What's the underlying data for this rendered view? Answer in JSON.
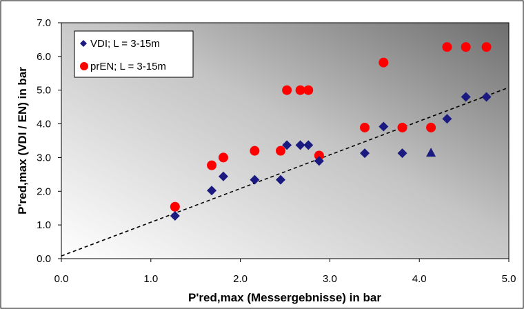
{
  "chart_data": {
    "type": "scatter",
    "title": "",
    "xlabel": "P'red,max (Messergebnisse) in bar",
    "ylabel": "P'red,max (VDI / EN) in bar",
    "xlim": [
      0.0,
      5.0
    ],
    "ylim": [
      0.0,
      7.0
    ],
    "x_ticks": [
      "0.0",
      "1.0",
      "2.0",
      "3.0",
      "4.0",
      "5.0"
    ],
    "y_ticks": [
      "0.0",
      "1.0",
      "2.0",
      "3.0",
      "4.0",
      "5.0",
      "6.0",
      "7.0"
    ],
    "grid": false,
    "legend_position": "top-left",
    "background": "gradient white (bottom-left) to grey (top-right)",
    "series": [
      {
        "name": "VDI; L = 3-15m",
        "marker": "diamond",
        "color": "#1a1a80",
        "points": [
          {
            "x": 1.27,
            "y": 1.27
          },
          {
            "x": 1.68,
            "y": 2.02
          },
          {
            "x": 1.81,
            "y": 2.44
          },
          {
            "x": 2.16,
            "y": 2.34
          },
          {
            "x": 2.45,
            "y": 2.34
          },
          {
            "x": 2.52,
            "y": 3.37
          },
          {
            "x": 2.67,
            "y": 3.37
          },
          {
            "x": 2.76,
            "y": 3.37
          },
          {
            "x": 2.88,
            "y": 2.9
          },
          {
            "x": 3.39,
            "y": 3.13
          },
          {
            "x": 3.6,
            "y": 3.92
          },
          {
            "x": 3.81,
            "y": 3.13
          },
          {
            "x": 4.31,
            "y": 4.15
          },
          {
            "x": 4.52,
            "y": 4.8
          },
          {
            "x": 4.75,
            "y": 4.8
          }
        ],
        "extra_points": [
          {
            "x": 4.13,
            "y": 3.15,
            "marker": "triangle"
          }
        ]
      },
      {
        "name": "prEN; L = 3-15m",
        "marker": "circle",
        "color": "#ff0000",
        "points": [
          {
            "x": 1.27,
            "y": 1.54
          },
          {
            "x": 1.68,
            "y": 2.77
          },
          {
            "x": 1.81,
            "y": 3.0
          },
          {
            "x": 2.16,
            "y": 3.2
          },
          {
            "x": 2.45,
            "y": 3.2
          },
          {
            "x": 2.52,
            "y": 5.0
          },
          {
            "x": 2.67,
            "y": 5.0
          },
          {
            "x": 2.76,
            "y": 5.0
          },
          {
            "x": 2.88,
            "y": 3.06
          },
          {
            "x": 3.39,
            "y": 3.89
          },
          {
            "x": 3.6,
            "y": 5.82
          },
          {
            "x": 3.81,
            "y": 3.89
          },
          {
            "x": 4.13,
            "y": 3.89
          },
          {
            "x": 4.31,
            "y": 6.28
          },
          {
            "x": 4.52,
            "y": 6.28
          },
          {
            "x": 4.75,
            "y": 6.28
          }
        ]
      }
    ],
    "reference_line": {
      "style": "dashed",
      "color": "#000000",
      "from": {
        "x": 0.0,
        "y": 0.08
      },
      "to": {
        "x": 5.0,
        "y": 5.08
      }
    }
  }
}
